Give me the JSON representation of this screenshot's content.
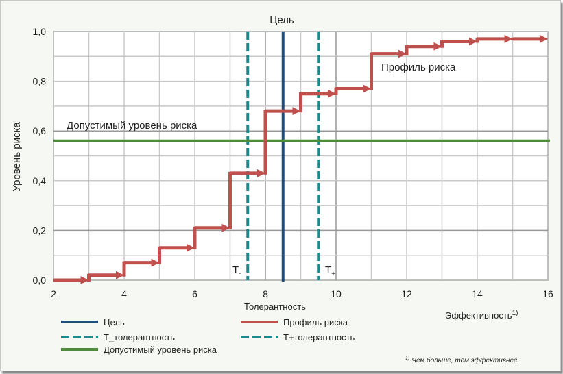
{
  "chart_data": {
    "type": "line",
    "title": "Цель",
    "xlabel": "Толерантность",
    "xlabel2": "Эффективность",
    "xlabel2_sup": "1)",
    "ylabel": "Уровень риска",
    "xlim": [
      2,
      16
    ],
    "ylim": [
      0,
      1.0
    ],
    "xticks": [
      2,
      4,
      6,
      8,
      10,
      12,
      14,
      16
    ],
    "yticks": [
      "0,0",
      "0,2",
      "0,4",
      "0,6",
      "0,8",
      "1,0"
    ],
    "grid": true,
    "series": [
      {
        "name": "Профиль риска",
        "type": "step",
        "color": "#c0504d",
        "x": [
          2,
          3,
          4,
          5,
          6,
          7,
          8,
          9,
          10,
          11,
          12,
          13,
          14,
          15,
          16
        ],
        "y": [
          0,
          0.02,
          0.07,
          0.13,
          0.21,
          0.43,
          0.68,
          0.75,
          0.77,
          0.91,
          0.94,
          0.96,
          0.97,
          0.97,
          0.97
        ]
      },
      {
        "name": "Цель",
        "type": "vline",
        "x": 8.5,
        "color": "#1f4e79"
      },
      {
        "name": "T_толерантность",
        "type": "vline-dashed",
        "x": 7.5,
        "color": "#1a8a8a"
      },
      {
        "name": "T+толерантность",
        "type": "vline-dashed",
        "x": 9.5,
        "color": "#1a8a8a"
      },
      {
        "name": "Допустимый уровень риска",
        "type": "hline",
        "y": 0.56,
        "color": "#4e8b3a"
      }
    ],
    "annotations": {
      "tminus": "T",
      "tminus_sub": "-",
      "tplus": "T",
      "tplus_sub": "+",
      "profile": "Профиль риска",
      "acceptable": "Допустимый уровень риска"
    },
    "legend": [
      "Цель",
      "Профиль риска",
      "T_толерантность",
      "T+толерантность",
      "Допустимый уровень риска"
    ],
    "legend_placement": "bottom",
    "footnote_sup": "1)",
    "footnote": "Чем больше, тем эффективнее"
  }
}
